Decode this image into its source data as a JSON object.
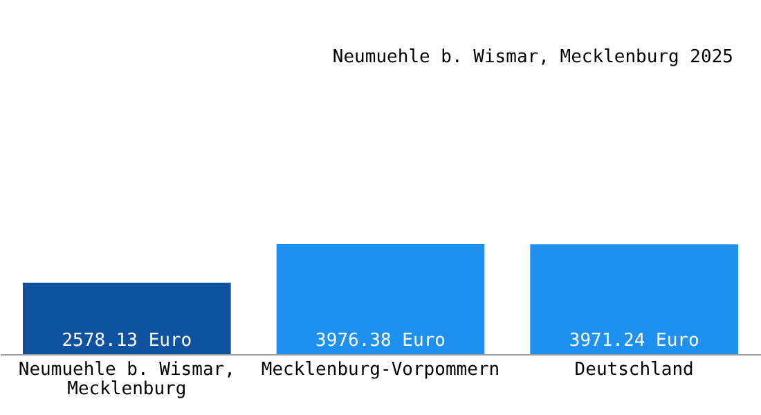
{
  "chart_data": {
    "type": "bar",
    "title": "Neumuehle b. Wismar, Mecklenburg 2025",
    "categories": [
      "Neumuehle b. Wismar, Mecklenburg",
      "Mecklenburg-Vorpommern",
      "Deutschland"
    ],
    "values": [
      2578.13,
      3976.38,
      3971.24
    ],
    "colors": [
      "#0f52a0",
      "#1e90f0",
      "#1e90f0"
    ],
    "value_labels": [
      "2578.13 Euro",
      "3976.38 Euro",
      "3971.24 Euro"
    ]
  }
}
